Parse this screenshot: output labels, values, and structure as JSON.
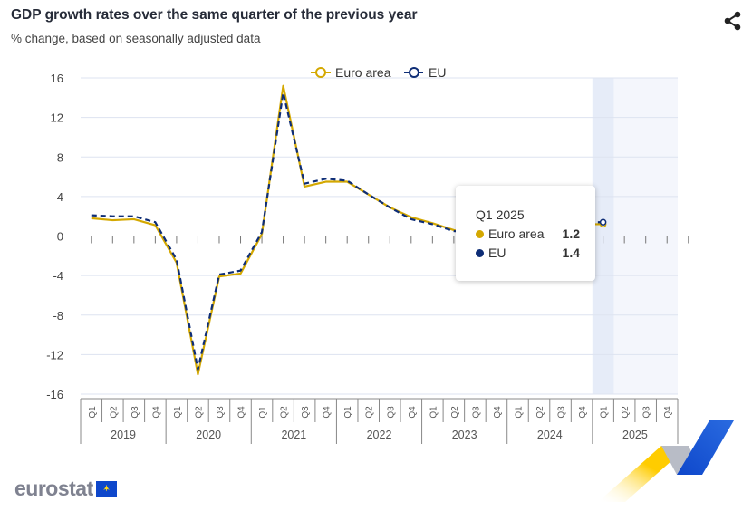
{
  "header": {
    "title": "GDP growth rates over the same quarter of the previous year",
    "subtitle": "% change, based on seasonally adjusted data"
  },
  "colors": {
    "euro_area": "#d4a800",
    "eu": "#0e2d76",
    "highlight": "#e6ecf8",
    "forecast_band": "#f4f6fc",
    "grid": "#dde3f0"
  },
  "chart_data": {
    "type": "line",
    "title": "GDP growth rates over the same quarter of the previous year",
    "ylim": [
      -16,
      16
    ],
    "yticks": [
      16,
      12,
      8,
      4,
      0,
      -4,
      -8,
      -12,
      -16
    ],
    "quarters": [
      "Q1",
      "Q2",
      "Q3",
      "Q4"
    ],
    "years": [
      "2019",
      "2020",
      "2021",
      "2022",
      "2023",
      "2024",
      "2025"
    ],
    "legend": {
      "placement": "top-center"
    },
    "series": [
      {
        "name": "Euro area",
        "style": "solid",
        "values": [
          1.8,
          1.6,
          1.7,
          1.1,
          -2.7,
          -14.0,
          -4.1,
          -3.8,
          0.2,
          15.2,
          5.0,
          5.5,
          5.5,
          4.2,
          2.9,
          1.9,
          1.3,
          0.6,
          0.1,
          0.2,
          0.5,
          0.5,
          0.9,
          1.2,
          1.2
        ]
      },
      {
        "name": "EU",
        "style": "dashed",
        "values": [
          2.1,
          2.0,
          2.0,
          1.4,
          -2.4,
          -13.5,
          -3.9,
          -3.5,
          0.4,
          14.5,
          5.3,
          5.8,
          5.6,
          4.2,
          2.9,
          1.7,
          1.2,
          0.5,
          0.3,
          0.4,
          0.6,
          0.7,
          1.1,
          1.4,
          1.4
        ]
      }
    ]
  },
  "tooltip": {
    "title": "Q1 2025",
    "rows": [
      {
        "label": "Euro area",
        "value": "1.2"
      },
      {
        "label": "EU",
        "value": "1.4"
      }
    ]
  },
  "footer": {
    "logo": "eurostat"
  }
}
